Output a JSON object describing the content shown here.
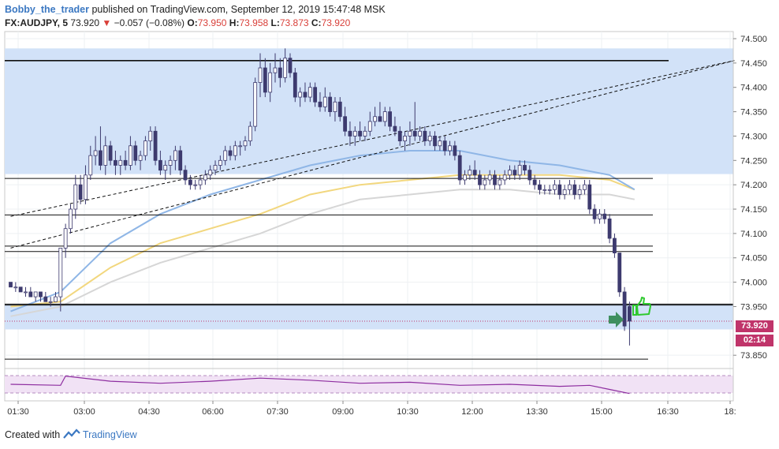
{
  "header": {
    "author": "Bobby_the_trader",
    "published_text": "published on TradingView.com, September 12, 2019 15:47:48 MSK",
    "symbol": "FX:AUDJPY, 5",
    "last": "73.920",
    "change": "−0.057 (−0.08%)",
    "o_label": "O:",
    "o_value": "73.950",
    "h_label": "H:",
    "h_value": "73.958",
    "l_label": "L:",
    "l_value": "73.873",
    "c_label": "C:",
    "c_value": "73.920"
  },
  "footer": {
    "created_with": "Created with",
    "brand": "TradingView"
  },
  "price_tags": {
    "last_price": "73.920",
    "countdown": "02:14"
  },
  "colors": {
    "zone": "#d2e2f8",
    "candle_up": "#ffffff",
    "candle_down": "#3d3a6e",
    "ma_blue": "#8fb6e6",
    "ma_yellow": "#f2d77e",
    "ma_gray": "#d6d6d6",
    "osc": "#8e2ea0",
    "osc_bg": "#f1e2f5",
    "tag": "#c0346a",
    "arrow": "#3f8f5f",
    "thumb": "#2fc92f"
  },
  "icons": [
    "arrow-right-icon",
    "thumbs-up-icon",
    "tradingview-logo-icon"
  ],
  "chart_data": {
    "type": "candlestick",
    "symbol": "FX:AUDJPY",
    "interval": "5",
    "y_axis": {
      "ticks": [
        74.5,
        74.45,
        74.4,
        74.35,
        74.3,
        74.25,
        74.2,
        74.15,
        74.1,
        74.05,
        74.0,
        73.95,
        73.85
      ],
      "tick_labels": [
        "74.500",
        "74.450",
        "74.400",
        "74.350",
        "74.300",
        "74.250",
        "74.200",
        "74.150",
        "74.100",
        "74.050",
        "74.000",
        "73.950",
        "73.850"
      ]
    },
    "x_axis": {
      "tick_labels": [
        "01:30",
        "03:00",
        "04:30",
        "06:00",
        "07:30",
        "09:00",
        "10:30",
        "12:00",
        "13:30",
        "15:00",
        "16:30",
        "18:"
      ]
    },
    "last_price": 73.92,
    "candles": [
      [
        0,
        74.0,
        74.0,
        73.99,
        73.99
      ],
      [
        1,
        73.99,
        74.0,
        73.98,
        73.99
      ],
      [
        2,
        73.99,
        73.99,
        73.98,
        73.98
      ],
      [
        3,
        73.98,
        73.99,
        73.97,
        73.98
      ],
      [
        4,
        73.98,
        73.99,
        73.97,
        73.97
      ],
      [
        5,
        73.97,
        73.98,
        73.96,
        73.98
      ],
      [
        6,
        73.98,
        73.98,
        73.96,
        73.97
      ],
      [
        7,
        73.97,
        73.98,
        73.96,
        73.96
      ],
      [
        8,
        73.96,
        73.97,
        73.95,
        73.96
      ],
      [
        9,
        73.96,
        73.98,
        73.96,
        73.97
      ],
      [
        10,
        73.97,
        74.07,
        73.94,
        74.07
      ],
      [
        11,
        74.07,
        74.12,
        74.05,
        74.11
      ],
      [
        12,
        74.11,
        74.16,
        74.1,
        74.15
      ],
      [
        13,
        74.15,
        74.22,
        74.13,
        74.2
      ],
      [
        14,
        74.2,
        74.22,
        74.16,
        74.17
      ],
      [
        15,
        74.17,
        74.24,
        74.16,
        74.22
      ],
      [
        16,
        74.22,
        74.28,
        74.21,
        74.26
      ],
      [
        17,
        74.26,
        74.3,
        74.24,
        74.27
      ],
      [
        18,
        74.27,
        74.32,
        74.23,
        74.24
      ],
      [
        19,
        74.24,
        74.3,
        74.22,
        74.28
      ],
      [
        20,
        74.28,
        74.29,
        74.24,
        74.25
      ],
      [
        21,
        74.25,
        74.27,
        74.22,
        74.24
      ],
      [
        22,
        74.24,
        74.26,
        74.22,
        74.25
      ],
      [
        23,
        74.25,
        74.27,
        74.23,
        74.24
      ],
      [
        24,
        74.24,
        74.3,
        74.23,
        74.28
      ],
      [
        25,
        74.28,
        74.29,
        74.24,
        74.25
      ],
      [
        26,
        74.25,
        74.27,
        74.23,
        74.26
      ],
      [
        27,
        74.26,
        74.3,
        74.25,
        74.29
      ],
      [
        28,
        74.29,
        74.32,
        74.27,
        74.31
      ],
      [
        29,
        74.31,
        74.32,
        74.24,
        74.25
      ],
      [
        30,
        74.25,
        74.27,
        74.22,
        74.23
      ],
      [
        31,
        74.23,
        74.25,
        74.21,
        74.24
      ],
      [
        32,
        74.24,
        74.26,
        74.22,
        74.25
      ],
      [
        33,
        74.25,
        74.28,
        74.23,
        74.27
      ],
      [
        34,
        74.27,
        74.28,
        74.22,
        74.23
      ],
      [
        35,
        74.23,
        74.24,
        74.2,
        74.21
      ],
      [
        36,
        74.21,
        74.22,
        74.19,
        74.2
      ],
      [
        37,
        74.2,
        74.21,
        74.19,
        74.2
      ],
      [
        38,
        74.2,
        74.22,
        74.19,
        74.21
      ],
      [
        39,
        74.21,
        74.23,
        74.2,
        74.22
      ],
      [
        40,
        74.22,
        74.24,
        74.21,
        74.23
      ],
      [
        41,
        74.23,
        74.25,
        74.22,
        74.24
      ],
      [
        42,
        74.24,
        74.26,
        74.23,
        74.25
      ],
      [
        43,
        74.25,
        74.28,
        74.24,
        74.27
      ],
      [
        44,
        74.27,
        74.28,
        74.25,
        74.26
      ],
      [
        45,
        74.26,
        74.29,
        74.25,
        74.28
      ],
      [
        46,
        74.28,
        74.29,
        74.26,
        74.28
      ],
      [
        47,
        74.28,
        74.3,
        74.27,
        74.29
      ],
      [
        48,
        74.29,
        74.33,
        74.28,
        74.32
      ],
      [
        49,
        74.32,
        74.42,
        74.31,
        74.41
      ],
      [
        50,
        74.41,
        74.47,
        74.38,
        74.44
      ],
      [
        51,
        74.44,
        74.46,
        74.38,
        74.39
      ],
      [
        52,
        74.39,
        74.45,
        74.37,
        74.43
      ],
      [
        53,
        74.43,
        74.47,
        74.41,
        74.44
      ],
      [
        54,
        74.44,
        74.46,
        74.4,
        74.42
      ],
      [
        55,
        74.42,
        74.48,
        74.41,
        74.46
      ],
      [
        56,
        74.46,
        74.47,
        74.42,
        74.43
      ],
      [
        57,
        74.43,
        74.44,
        74.37,
        74.38
      ],
      [
        58,
        74.38,
        74.4,
        74.36,
        74.39
      ],
      [
        59,
        74.39,
        74.41,
        74.37,
        74.38
      ],
      [
        60,
        74.38,
        74.41,
        74.37,
        74.4
      ],
      [
        61,
        74.4,
        74.41,
        74.36,
        74.37
      ],
      [
        62,
        74.37,
        74.39,
        74.35,
        74.36
      ],
      [
        63,
        74.36,
        74.4,
        74.35,
        74.38
      ],
      [
        64,
        74.38,
        74.39,
        74.34,
        74.35
      ],
      [
        65,
        74.35,
        74.38,
        74.33,
        74.37
      ],
      [
        66,
        74.37,
        74.38,
        74.33,
        74.34
      ],
      [
        67,
        74.34,
        74.36,
        74.3,
        74.31
      ],
      [
        68,
        74.31,
        74.33,
        74.28,
        74.3
      ],
      [
        69,
        74.3,
        74.32,
        74.28,
        74.31
      ],
      [
        70,
        74.31,
        74.33,
        74.29,
        74.3
      ],
      [
        71,
        74.3,
        74.32,
        74.29,
        74.31
      ],
      [
        72,
        74.31,
        74.35,
        74.3,
        74.33
      ],
      [
        73,
        74.33,
        74.36,
        74.32,
        74.34
      ],
      [
        74,
        74.34,
        74.37,
        74.33,
        74.33
      ],
      [
        75,
        74.33,
        74.36,
        74.32,
        74.35
      ],
      [
        76,
        74.35,
        74.36,
        74.31,
        74.32
      ],
      [
        77,
        74.32,
        74.34,
        74.3,
        74.31
      ],
      [
        78,
        74.31,
        74.32,
        74.28,
        74.29
      ],
      [
        79,
        74.29,
        74.31,
        74.27,
        74.3
      ],
      [
        80,
        74.3,
        74.33,
        74.28,
        74.31
      ],
      [
        81,
        74.31,
        74.37,
        74.29,
        74.3
      ],
      [
        82,
        74.3,
        74.32,
        74.29,
        74.31
      ],
      [
        83,
        74.31,
        74.32,
        74.28,
        74.29
      ],
      [
        84,
        74.29,
        74.31,
        74.28,
        74.3
      ],
      [
        85,
        74.3,
        74.31,
        74.27,
        74.28
      ],
      [
        86,
        74.28,
        74.3,
        74.27,
        74.29
      ],
      [
        87,
        74.29,
        74.3,
        74.26,
        74.27
      ],
      [
        88,
        74.27,
        74.29,
        74.26,
        74.28
      ],
      [
        89,
        74.28,
        74.29,
        74.25,
        74.26
      ],
      [
        90,
        74.26,
        74.27,
        74.2,
        74.21
      ],
      [
        91,
        74.21,
        74.23,
        74.2,
        74.22
      ],
      [
        92,
        74.22,
        74.24,
        74.21,
        74.23
      ],
      [
        93,
        74.23,
        74.25,
        74.21,
        74.22
      ],
      [
        94,
        74.22,
        74.23,
        74.19,
        74.2
      ],
      [
        95,
        74.2,
        74.22,
        74.19,
        74.21
      ],
      [
        96,
        74.21,
        74.23,
        74.2,
        74.22
      ],
      [
        97,
        74.22,
        74.23,
        74.19,
        74.2
      ],
      [
        98,
        74.2,
        74.22,
        74.19,
        74.21
      ],
      [
        99,
        74.21,
        74.23,
        74.2,
        74.22
      ],
      [
        100,
        74.22,
        74.24,
        74.21,
        74.23
      ],
      [
        101,
        74.23,
        74.24,
        74.21,
        74.22
      ],
      [
        102,
        74.22,
        74.25,
        74.21,
        74.24
      ],
      [
        103,
        74.24,
        74.25,
        74.22,
        74.23
      ],
      [
        104,
        74.23,
        74.24,
        74.2,
        74.21
      ],
      [
        105,
        74.21,
        74.22,
        74.19,
        74.2
      ],
      [
        106,
        74.2,
        74.21,
        74.18,
        74.19
      ],
      [
        107,
        74.19,
        74.2,
        74.18,
        74.19
      ],
      [
        108,
        74.19,
        74.2,
        74.18,
        74.19
      ],
      [
        109,
        74.19,
        74.21,
        74.18,
        74.2
      ],
      [
        110,
        74.2,
        74.21,
        74.17,
        74.18
      ],
      [
        111,
        74.18,
        74.2,
        74.17,
        74.19
      ],
      [
        112,
        74.19,
        74.21,
        74.18,
        74.2
      ],
      [
        113,
        74.2,
        74.21,
        74.17,
        74.18
      ],
      [
        114,
        74.18,
        74.2,
        74.17,
        74.19
      ],
      [
        115,
        74.19,
        74.21,
        74.18,
        74.2
      ],
      [
        116,
        74.2,
        74.21,
        74.14,
        74.15
      ],
      [
        117,
        74.15,
        74.16,
        74.12,
        74.13
      ],
      [
        118,
        74.13,
        74.15,
        74.12,
        74.14
      ],
      [
        119,
        74.14,
        74.15,
        74.12,
        74.13
      ],
      [
        120,
        74.13,
        74.14,
        74.08,
        74.09
      ],
      [
        121,
        74.09,
        74.1,
        74.05,
        74.06
      ],
      [
        122,
        74.06,
        74.06,
        73.97,
        73.98
      ],
      [
        123,
        73.98,
        73.99,
        73.9,
        73.91
      ],
      [
        124,
        73.95,
        73.96,
        73.87,
        73.92
      ]
    ],
    "moving_averages": [
      {
        "color": "blue",
        "values": [
          [
            0,
            73.94
          ],
          [
            10,
            73.98
          ],
          [
            20,
            74.08
          ],
          [
            30,
            74.14
          ],
          [
            40,
            74.18
          ],
          [
            50,
            74.21
          ],
          [
            60,
            74.24
          ],
          [
            70,
            74.26
          ],
          [
            80,
            74.27
          ],
          [
            90,
            74.27
          ],
          [
            100,
            74.25
          ],
          [
            110,
            74.24
          ],
          [
            120,
            74.22
          ],
          [
            125,
            74.19
          ]
        ]
      },
      {
        "color": "yellow",
        "values": [
          [
            0,
            73.95
          ],
          [
            10,
            73.96
          ],
          [
            20,
            74.03
          ],
          [
            30,
            74.08
          ],
          [
            40,
            74.11
          ],
          [
            50,
            74.14
          ],
          [
            60,
            74.18
          ],
          [
            70,
            74.2
          ],
          [
            80,
            74.21
          ],
          [
            90,
            74.22
          ],
          [
            100,
            74.22
          ],
          [
            110,
            74.22
          ],
          [
            120,
            74.21
          ],
          [
            125,
            74.19
          ]
        ]
      },
      {
        "color": "gray",
        "values": [
          [
            0,
            73.93
          ],
          [
            10,
            73.95
          ],
          [
            20,
            74.0
          ],
          [
            30,
            74.04
          ],
          [
            40,
            74.07
          ],
          [
            50,
            74.1
          ],
          [
            60,
            74.14
          ],
          [
            70,
            74.17
          ],
          [
            80,
            74.18
          ],
          [
            90,
            74.19
          ],
          [
            100,
            74.19
          ],
          [
            110,
            74.18
          ],
          [
            120,
            74.18
          ],
          [
            125,
            74.17
          ]
        ]
      }
    ],
    "horizontal_levels": [
      74.455,
      74.213,
      74.138,
      74.074,
      74.063,
      73.955,
      73.953,
      73.842
    ],
    "zones": [
      [
        74.48,
        74.222
      ],
      [
        73.955,
        73.903
      ]
    ],
    "trendlines": [
      [
        [
          0,
          74.135
        ],
        [
          145,
          74.455
        ]
      ],
      [
        [
          0,
          74.07
        ],
        [
          145,
          74.455
        ]
      ]
    ],
    "oscillator": [
      [
        0,
        0.5
      ],
      [
        10,
        0.45
      ],
      [
        11,
        0.9
      ],
      [
        20,
        0.65
      ],
      [
        30,
        0.55
      ],
      [
        40,
        0.65
      ],
      [
        50,
        0.8
      ],
      [
        60,
        0.7
      ],
      [
        70,
        0.55
      ],
      [
        80,
        0.6
      ],
      [
        90,
        0.45
      ],
      [
        100,
        0.5
      ],
      [
        110,
        0.4
      ],
      [
        116,
        0.45
      ],
      [
        120,
        0.25
      ],
      [
        124,
        0.05
      ]
    ],
    "grid": true
  }
}
